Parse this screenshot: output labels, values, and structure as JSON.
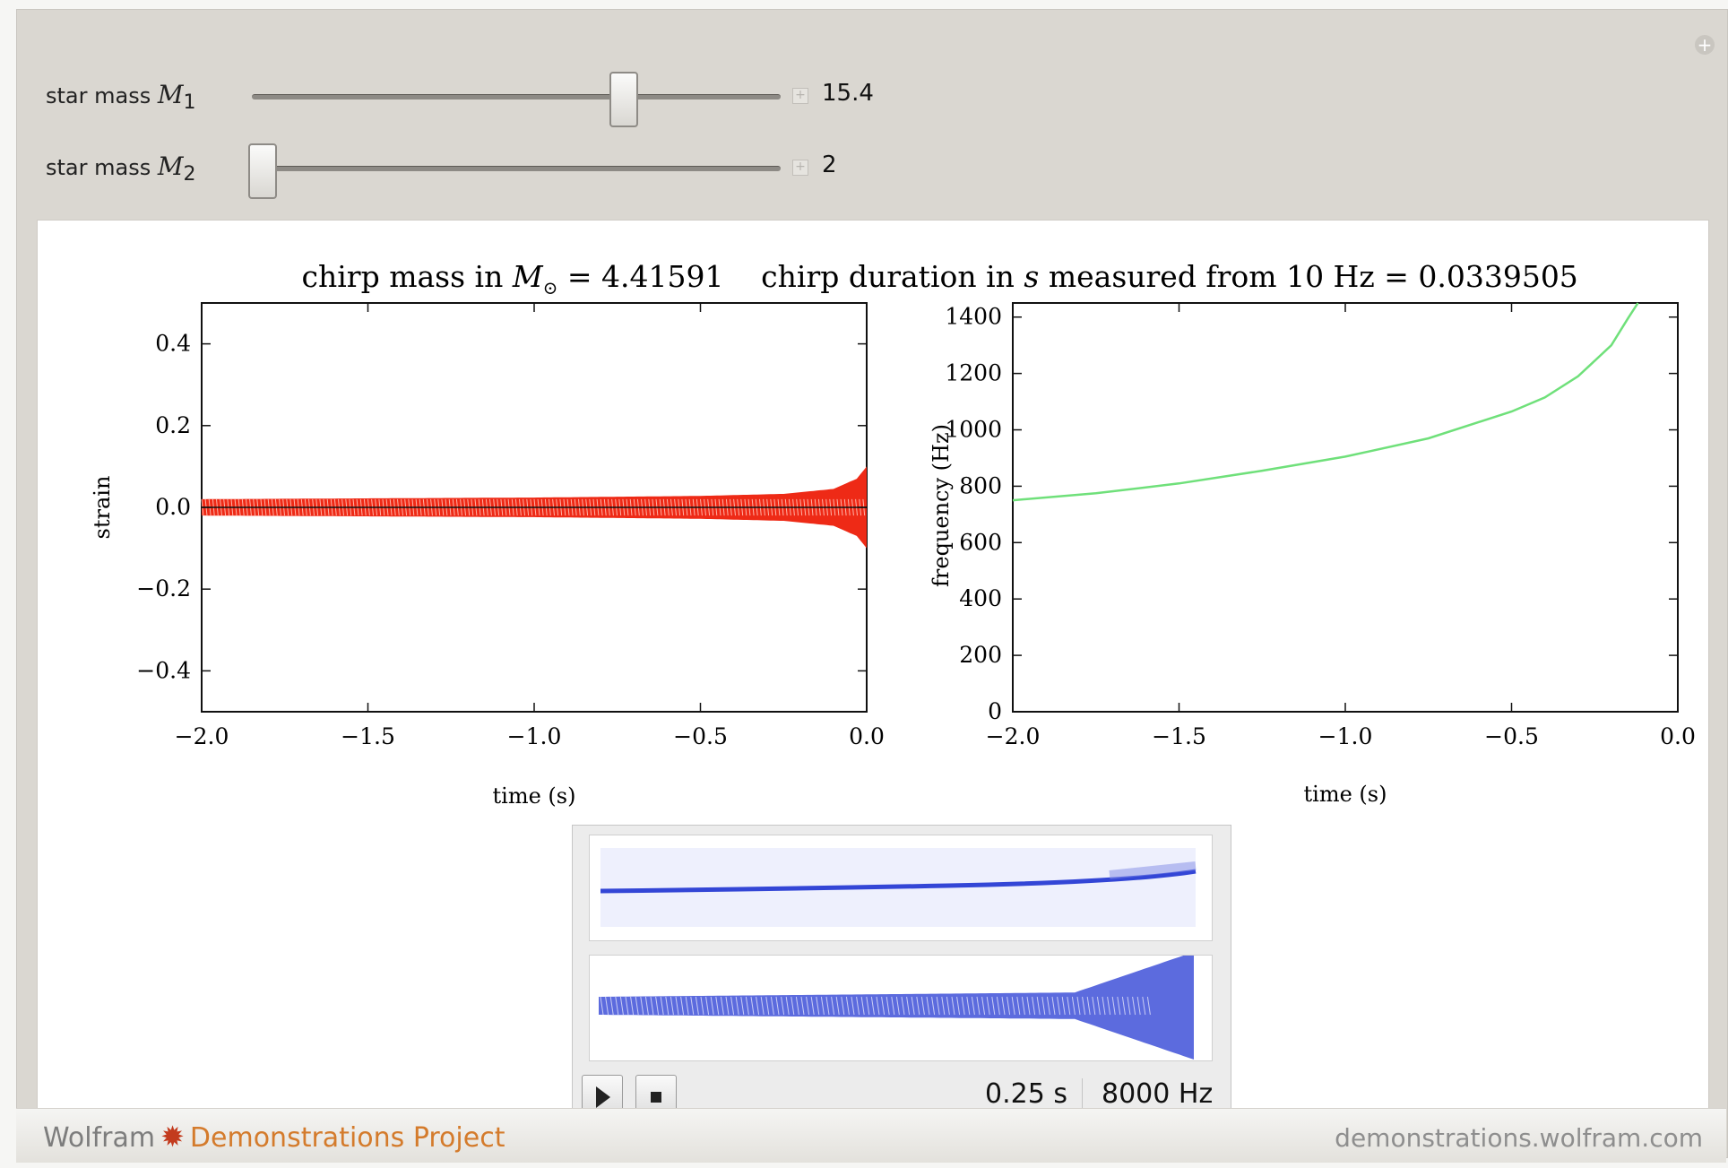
{
  "controls": [
    {
      "label": "star mass",
      "symbol": "M",
      "subscript": "1",
      "value": "15.4",
      "fraction": 0.72
    },
    {
      "label": "star mass",
      "symbol": "M",
      "subscript": "2",
      "value": "2",
      "fraction": 0.0
    }
  ],
  "chart_data": [
    {
      "type": "line",
      "title_prefix": "chirp mass in ",
      "title_symbol": "M",
      "title_subscript": "⊙",
      "title_value": " = 4.41591",
      "xlabel": "time (s)",
      "ylabel": "strain",
      "xlim": [
        -2.0,
        0.0
      ],
      "ylim": [
        -0.5,
        0.5
      ],
      "x_ticks": [
        "−2.0",
        "−1.5",
        "−1.0",
        "−0.5",
        "0.0"
      ],
      "y_ticks": [
        "0.4",
        "0.2",
        "0.0",
        "−0.2",
        "−0.4"
      ],
      "series": [
        {
          "color": "#ee2a16",
          "x": [
            -2.0,
            -1.5,
            -1.0,
            -0.5,
            -0.25,
            -0.1,
            -0.03,
            0.0
          ],
          "amplitude": [
            0.02,
            0.022,
            0.024,
            0.028,
            0.033,
            0.045,
            0.07,
            0.1
          ]
        }
      ]
    },
    {
      "type": "line",
      "title_prefix": "chirp duration in ",
      "title_symbol": "s",
      "title_value": " measured from 10 Hz = 0.0339505",
      "xlabel": "time (s)",
      "ylabel": "frequency (Hz)",
      "xlim": [
        -2.0,
        0.0
      ],
      "ylim": [
        0,
        1450
      ],
      "x_ticks": [
        "−2.0",
        "−1.5",
        "−1.0",
        "−0.5",
        "0.0"
      ],
      "y_ticks": [
        "0",
        "200",
        "400",
        "600",
        "800",
        "1000",
        "1200",
        "1400"
      ],
      "series": [
        {
          "color": "#6fe07a",
          "x": [
            -2.0,
            -1.75,
            -1.5,
            -1.25,
            -1.0,
            -0.75,
            -0.5,
            -0.4,
            -0.3,
            -0.2,
            -0.15,
            -0.12
          ],
          "y": [
            750,
            775,
            810,
            855,
            905,
            970,
            1065,
            1115,
            1190,
            1300,
            1395,
            1470
          ]
        }
      ]
    }
  ],
  "sound": {
    "duration": "0.25 s",
    "rate": "8000 Hz",
    "play_icon": "play-icon",
    "stop_icon": "stop-icon"
  },
  "footer": {
    "brand_prefix": "Wolfram",
    "brand_suffix": "Demonstrations Project",
    "url": "demonstrations.wolfram.com"
  },
  "colors": {
    "strain": "#ee2a16",
    "frequency": "#6fe07a",
    "sound": "#3346d6"
  }
}
